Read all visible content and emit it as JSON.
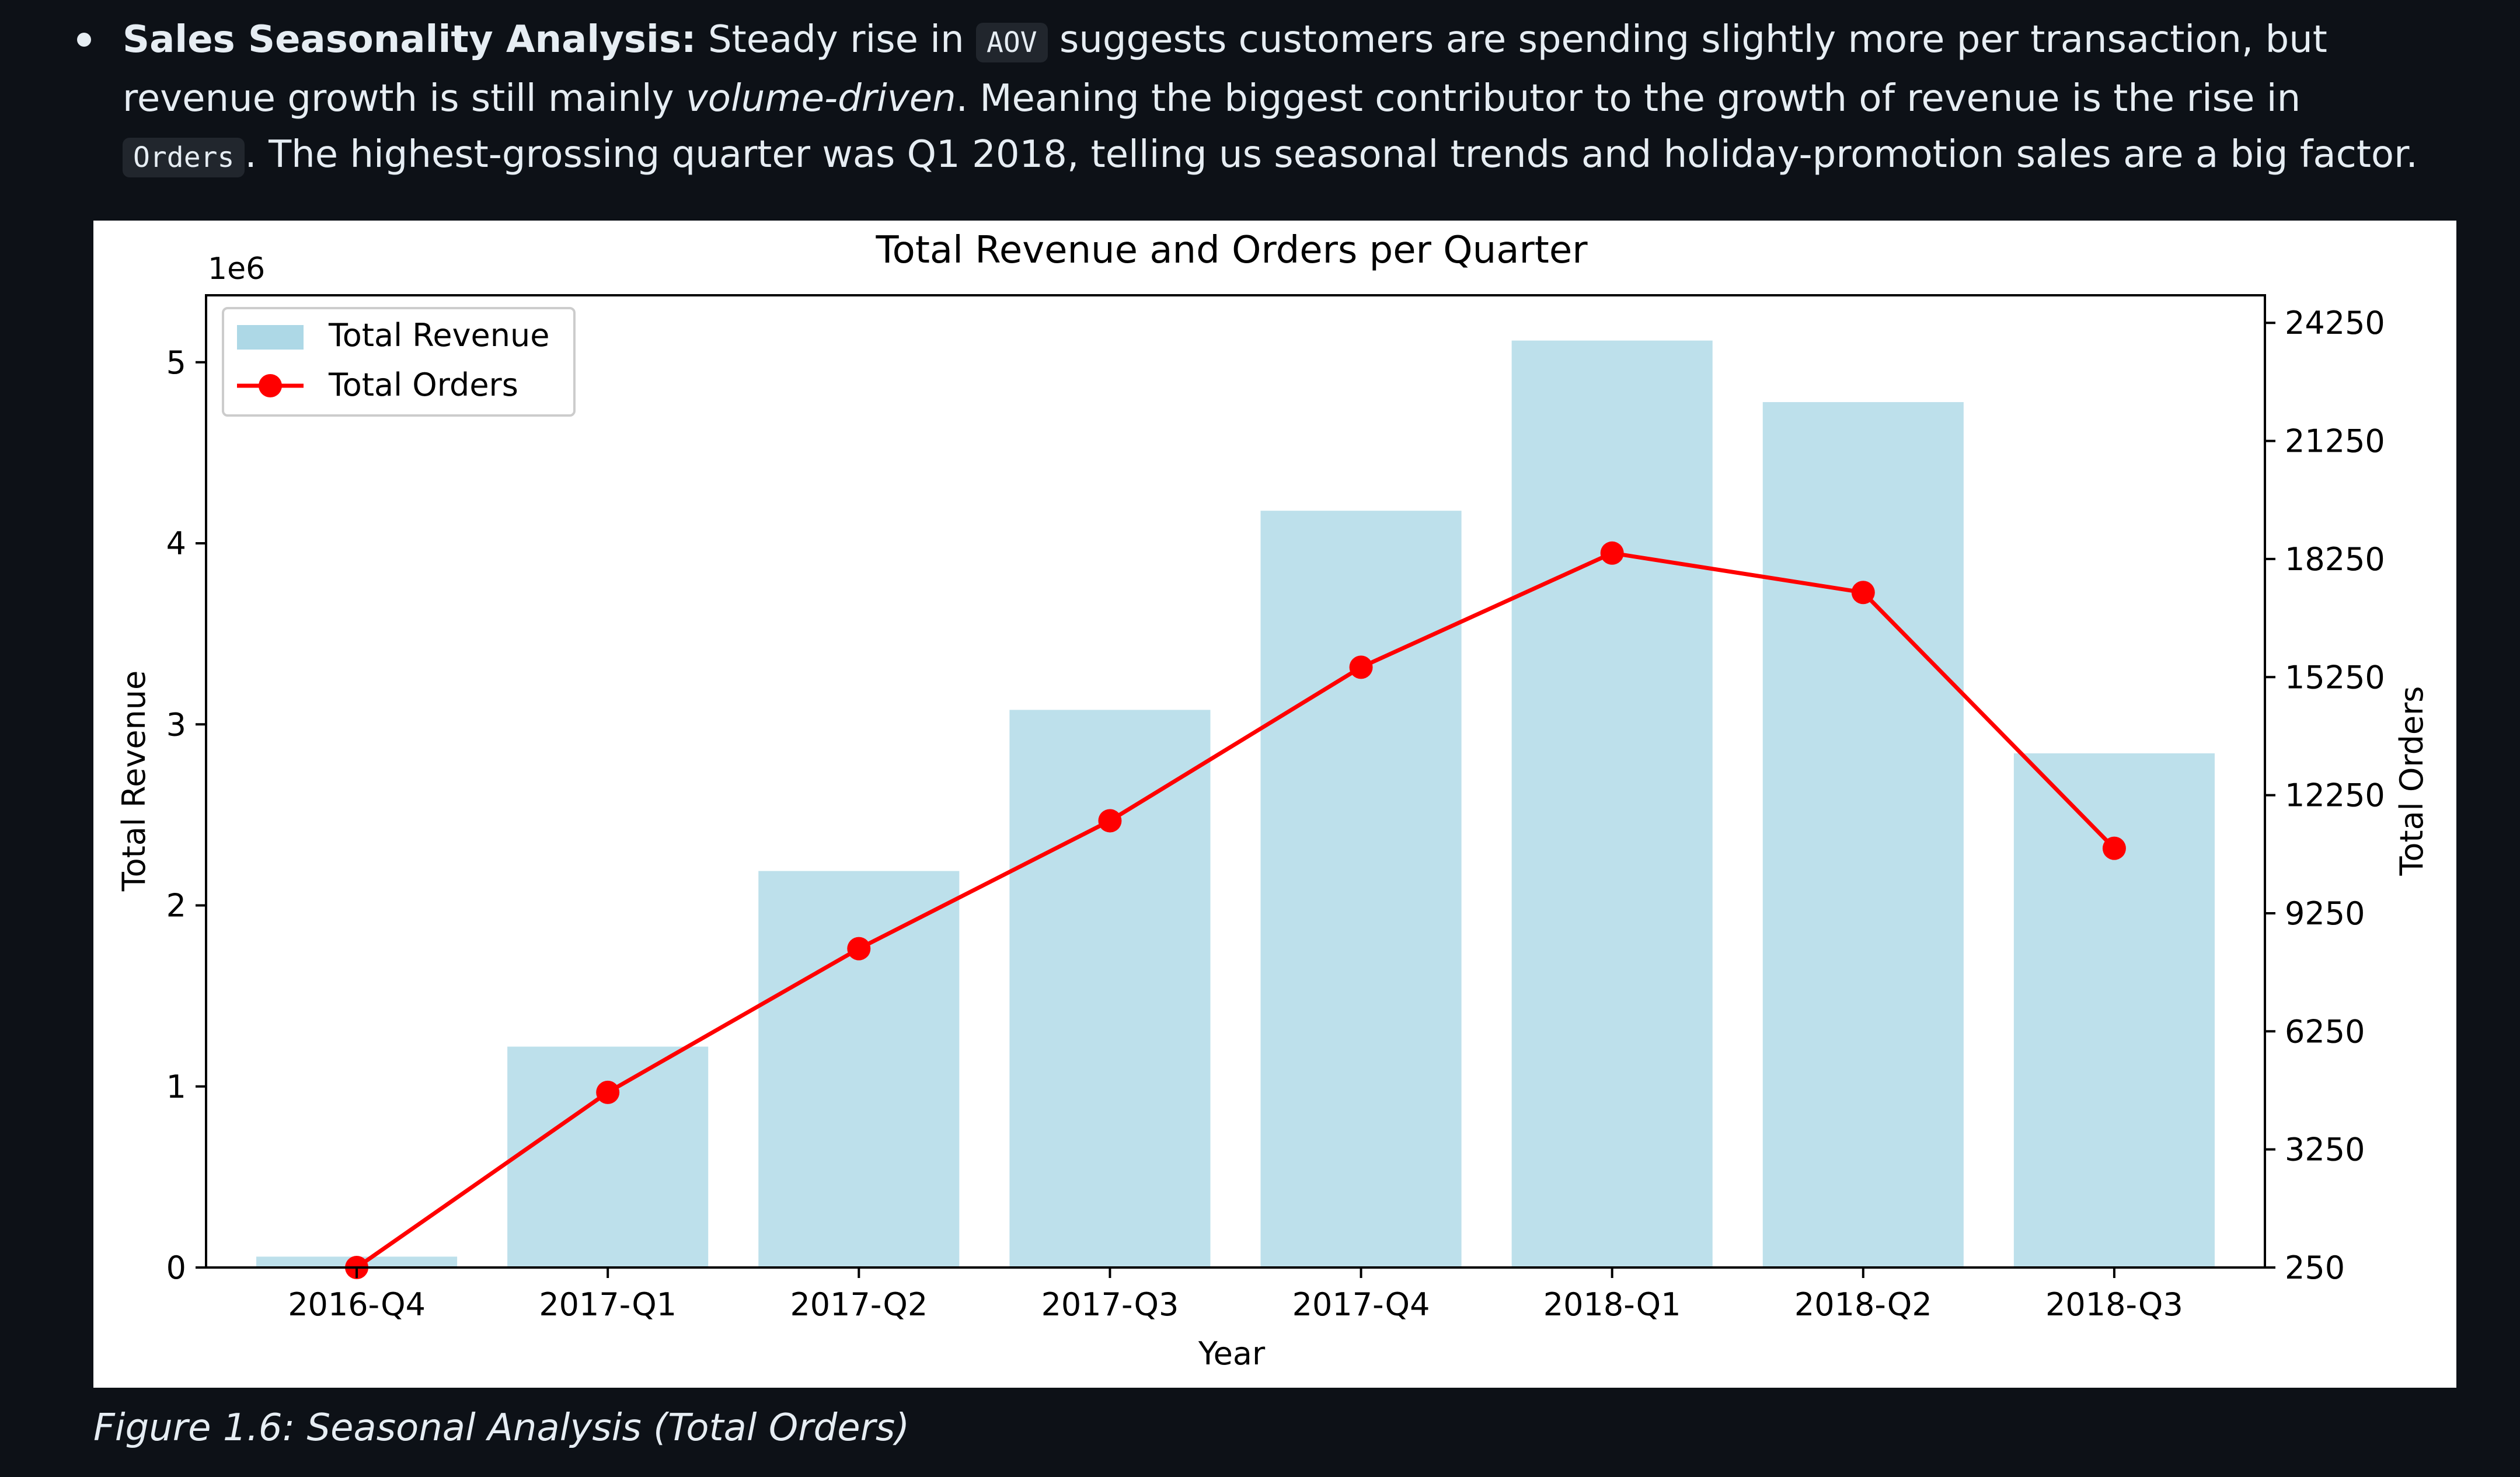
{
  "text": {
    "heading": "Sales Seasonality Analysis:",
    "t1": " Steady rise in ",
    "code_aov": "AOV",
    "t2": " suggests customers are spending slightly more per transaction, but revenue growth is still mainly ",
    "emph": "volume-driven",
    "t3": ". Meaning the biggest contributor to the growth of revenue is the rise in ",
    "code_orders": "Orders",
    "t4": ". The highest-grossing quarter was Q1 2018, telling us seasonal trends and holiday-promotion sales are a big factor."
  },
  "caption": "Figure 1.6: Seasonal Analysis (Total Orders)",
  "chart_data": {
    "type": "bar",
    "title": "Total Revenue and Orders per Quarter",
    "xlabel": "Year",
    "ylabel": "Total Revenue",
    "ylabel_right": "Total Orders",
    "y_offset_label": "1e6",
    "categories": [
      "2016-Q4",
      "2017-Q1",
      "2017-Q2",
      "2017-Q3",
      "2017-Q4",
      "2018-Q1",
      "2018-Q2",
      "2018-Q3"
    ],
    "series": [
      {
        "name": "Total Revenue",
        "type": "bar",
        "axis": "left",
        "color": "#add8e6",
        "values": [
          0.06,
          1.22,
          2.19,
          3.08,
          4.18,
          5.12,
          4.78,
          2.84
        ]
      },
      {
        "name": "Total Orders",
        "type": "line",
        "axis": "right",
        "color": "#ff0000",
        "values": [
          250,
          4700,
          8350,
          11600,
          15500,
          18400,
          17400,
          10900
        ]
      }
    ],
    "ylim": [
      0,
      5.37
    ],
    "y_ticks": [
      0,
      1,
      2,
      3,
      4,
      5
    ],
    "ylim_right": [
      250,
      24950
    ],
    "y_ticks_right": [
      250,
      3250,
      6250,
      9250,
      12250,
      15250,
      18250,
      21250,
      24250
    ],
    "legend": "top-left",
    "grid": false
  }
}
